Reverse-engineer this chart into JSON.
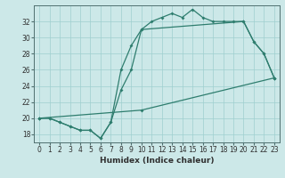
{
  "line1_x": [
    0,
    1,
    2,
    3,
    4,
    5,
    6,
    7,
    8,
    9,
    10,
    11,
    12,
    13,
    14,
    15,
    16,
    17,
    18,
    19,
    20,
    21,
    22,
    23
  ],
  "line1_y": [
    20.0,
    20.0,
    19.5,
    19.0,
    18.5,
    18.5,
    17.5,
    19.5,
    26.0,
    29.0,
    31.0,
    32.0,
    32.5,
    33.0,
    32.5,
    33.5,
    32.5,
    32.0,
    32.0,
    32.0,
    32.0,
    29.5,
    28.0,
    25.0
  ],
  "line2_x": [
    0,
    1,
    2,
    3,
    4,
    5,
    6,
    7,
    8,
    9,
    10,
    20,
    21,
    22,
    23
  ],
  "line2_y": [
    20.0,
    20.0,
    19.5,
    19.0,
    18.5,
    18.5,
    17.5,
    19.5,
    23.5,
    26.0,
    31.0,
    32.0,
    29.5,
    28.0,
    25.0
  ],
  "line3_x": [
    0,
    10,
    23
  ],
  "line3_y": [
    20.0,
    21.0,
    25.0
  ],
  "line_color": "#2e7d6e",
  "bg_color": "#cce8e8",
  "grid_color": "#9fcfcf",
  "xlabel": "Humidex (Indice chaleur)",
  "xlim": [
    -0.5,
    23.5
  ],
  "ylim": [
    17.0,
    34.0
  ],
  "yticks": [
    18,
    20,
    22,
    24,
    26,
    28,
    30,
    32
  ],
  "xticks": [
    0,
    1,
    2,
    3,
    4,
    5,
    6,
    7,
    8,
    9,
    10,
    11,
    12,
    13,
    14,
    15,
    16,
    17,
    18,
    19,
    20,
    21,
    22,
    23
  ],
  "axis_fontsize": 6.5,
  "tick_fontsize": 5.5,
  "marker": "D",
  "markersize": 2.0,
  "linewidth": 0.9
}
